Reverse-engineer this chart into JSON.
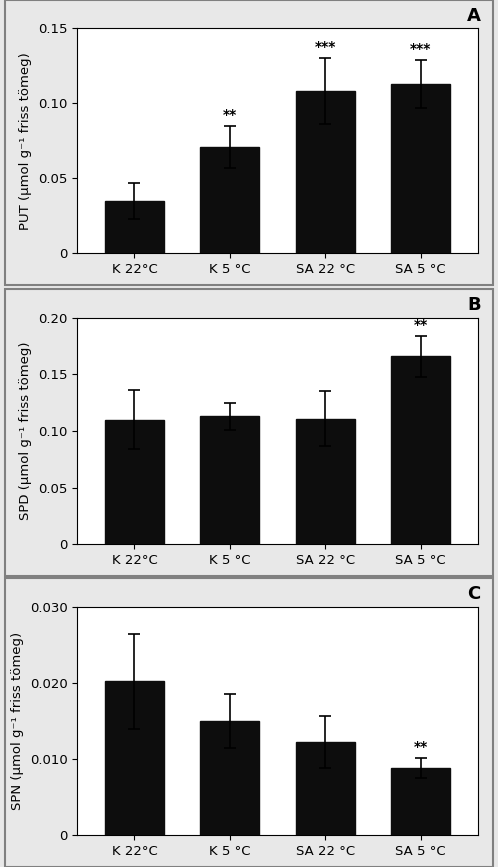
{
  "panels": [
    {
      "label": "A",
      "ylabel": "PUT (μmol g⁻¹ friss tömeg)",
      "ylim": [
        0,
        0.15
      ],
      "yticks": [
        0,
        0.05,
        0.1,
        0.15
      ],
      "ytick_labels": [
        "0",
        "0.05",
        "0.10",
        "0.15"
      ],
      "categories": [
        "K 22°C",
        "K 5 °C",
        "SA 22 °C",
        "SA 5 °C"
      ],
      "values": [
        0.035,
        0.071,
        0.108,
        0.113
      ],
      "errors": [
        0.012,
        0.014,
        0.022,
        0.016
      ],
      "sig_labels": [
        "",
        "**",
        "***",
        "***"
      ]
    },
    {
      "label": "B",
      "ylabel": "SPD (μmol g⁻¹ friss tömeg)",
      "ylim": [
        0,
        0.2
      ],
      "yticks": [
        0,
        0.05,
        0.1,
        0.15,
        0.2
      ],
      "ytick_labels": [
        "0",
        "0.05",
        "0.10",
        "0.15",
        "0.20"
      ],
      "categories": [
        "K 22°C",
        "K 5 °C",
        "SA 22 °C",
        "SA 5 °C"
      ],
      "values": [
        0.11,
        0.113,
        0.111,
        0.166
      ],
      "errors": [
        0.026,
        0.012,
        0.024,
        0.018
      ],
      "sig_labels": [
        "",
        "",
        "",
        "**"
      ]
    },
    {
      "label": "C",
      "ylabel": "SPN (μmol g⁻¹ friss tömeg)",
      "ylim": [
        0,
        0.03
      ],
      "yticks": [
        0,
        0.01,
        0.02,
        0.03
      ],
      "ytick_labels": [
        "0",
        "0.010",
        "0.020",
        "0.030"
      ],
      "categories": [
        "K 22°C",
        "K 5 °C",
        "SA 22 °C",
        "SA 5 °C"
      ],
      "values": [
        0.0202,
        0.015,
        0.0122,
        0.0088
      ],
      "errors": [
        0.0063,
        0.0035,
        0.0034,
        0.0013
      ],
      "sig_labels": [
        "",
        "",
        "",
        "**"
      ]
    }
  ],
  "bar_color": "#0d0d0d",
  "bar_width": 0.62,
  "background_color": "#ffffff",
  "outer_bg_color": "#e8e8e8",
  "tick_fontsize": 9.5,
  "label_fontsize": 9.5,
  "sig_fontsize": 10,
  "panel_label_fontsize": 13
}
